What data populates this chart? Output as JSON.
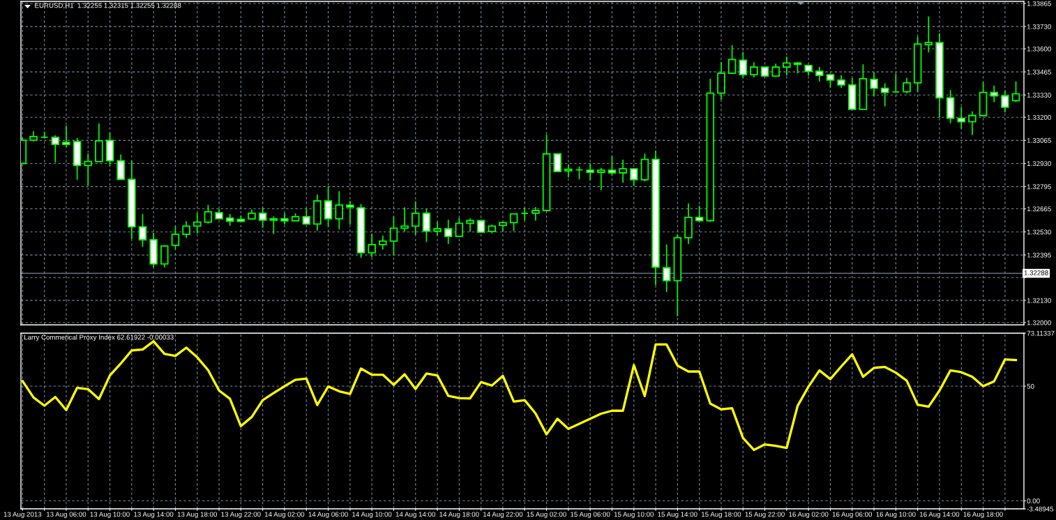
{
  "chart_data": [
    {
      "type": "candlestick",
      "title": "EURUSD,H1  1.32255 1.32315 1.32255 1.32288",
      "x": [
        "2013-08-13T02:00",
        "2013-08-13T03:00",
        "2013-08-13T04:00",
        "2013-08-13T05:00",
        "2013-08-13T06:00",
        "2013-08-13T07:00",
        "2013-08-13T08:00",
        "2013-08-13T09:00",
        "2013-08-13T10:00",
        "2013-08-13T11:00",
        "2013-08-13T12:00",
        "2013-08-13T13:00",
        "2013-08-13T14:00",
        "2013-08-13T15:00",
        "2013-08-13T16:00",
        "2013-08-13T17:00",
        "2013-08-13T18:00",
        "2013-08-13T19:00",
        "2013-08-13T20:00",
        "2013-08-13T21:00",
        "2013-08-13T22:00",
        "2013-08-13T23:00",
        "2013-08-14T00:00",
        "2013-08-14T01:00",
        "2013-08-14T02:00",
        "2013-08-14T03:00",
        "2013-08-14T04:00",
        "2013-08-14T05:00",
        "2013-08-14T06:00",
        "2013-08-14T07:00",
        "2013-08-14T08:00",
        "2013-08-14T09:00",
        "2013-08-14T10:00",
        "2013-08-14T11:00",
        "2013-08-14T12:00",
        "2013-08-14T13:00",
        "2013-08-14T14:00",
        "2013-08-14T15:00",
        "2013-08-14T16:00",
        "2013-08-14T17:00",
        "2013-08-14T18:00",
        "2013-08-14T19:00",
        "2013-08-14T20:00",
        "2013-08-14T21:00",
        "2013-08-14T22:00",
        "2013-08-14T23:00",
        "2013-08-15T00:00",
        "2013-08-15T01:00",
        "2013-08-15T02:00",
        "2013-08-15T03:00",
        "2013-08-15T04:00",
        "2013-08-15T05:00",
        "2013-08-15T06:00",
        "2013-08-15T07:00",
        "2013-08-15T08:00",
        "2013-08-15T09:00",
        "2013-08-15T10:00",
        "2013-08-15T11:00",
        "2013-08-15T12:00",
        "2013-08-15T13:00",
        "2013-08-15T14:00",
        "2013-08-15T15:00",
        "2013-08-15T16:00",
        "2013-08-15T17:00",
        "2013-08-15T18:00",
        "2013-08-15T19:00",
        "2013-08-15T20:00",
        "2013-08-15T21:00",
        "2013-08-15T22:00",
        "2013-08-15T23:00",
        "2013-08-16T00:00",
        "2013-08-16T01:00",
        "2013-08-16T02:00",
        "2013-08-16T03:00",
        "2013-08-16T04:00",
        "2013-08-16T05:00",
        "2013-08-16T06:00",
        "2013-08-16T07:00",
        "2013-08-16T08:00",
        "2013-08-16T09:00",
        "2013-08-16T10:00",
        "2013-08-16T11:00",
        "2013-08-16T12:00",
        "2013-08-16T13:00",
        "2013-08-16T14:00",
        "2013-08-16T15:00",
        "2013-08-16T16:00",
        "2013-08-16T17:00",
        "2013-08-16T18:00",
        "2013-08-16T19:00",
        "2013-08-16T20:00",
        "2013-08-16T21:00"
      ],
      "ohlc": [
        [
          1.3293,
          1.33081,
          1.3293,
          1.33066
        ],
        [
          1.33066,
          1.33118,
          1.33058,
          1.33087
        ],
        [
          1.33083,
          1.33116,
          1.3308,
          1.33083
        ],
        [
          1.33082,
          1.33094,
          1.32936,
          1.33042
        ],
        [
          1.33054,
          1.33151,
          1.33027,
          1.33042
        ],
        [
          1.33058,
          1.33079,
          1.32835,
          1.32918
        ],
        [
          1.32918,
          1.32987,
          1.32799,
          1.32942
        ],
        [
          1.32941,
          1.33163,
          1.32938,
          1.33062
        ],
        [
          1.33065,
          1.3311,
          1.32914,
          1.32946
        ],
        [
          1.32946,
          1.32982,
          1.32833,
          1.32837
        ],
        [
          1.32837,
          1.32944,
          1.32489,
          1.3256
        ],
        [
          1.3256,
          1.32635,
          1.32443,
          1.32484
        ],
        [
          1.32484,
          1.32525,
          1.32323,
          1.32343
        ],
        [
          1.32343,
          1.32453,
          1.32323,
          1.32448
        ],
        [
          1.32452,
          1.32565,
          1.32429,
          1.32516
        ],
        [
          1.32516,
          1.32593,
          1.32494,
          1.32564
        ],
        [
          1.32564,
          1.32641,
          1.32521,
          1.32587
        ],
        [
          1.32587,
          1.32688,
          1.32579,
          1.32647
        ],
        [
          1.32642,
          1.32665,
          1.32607,
          1.32607
        ],
        [
          1.32611,
          1.32635,
          1.32566,
          1.32593
        ],
        [
          1.32603,
          1.32625,
          1.32589,
          1.32591
        ],
        [
          1.32606,
          1.32661,
          1.32602,
          1.32639
        ],
        [
          1.32639,
          1.32673,
          1.32554,
          1.32599
        ],
        [
          1.32607,
          1.32621,
          1.32518,
          1.32599
        ],
        [
          1.32607,
          1.32641,
          1.32574,
          1.32595
        ],
        [
          1.32595,
          1.32638,
          1.32595,
          1.32619
        ],
        [
          1.32619,
          1.32669,
          1.32576,
          1.32576
        ],
        [
          1.32576,
          1.32748,
          1.32538,
          1.32711
        ],
        [
          1.32711,
          1.32795,
          1.3256,
          1.32607
        ],
        [
          1.32607,
          1.32768,
          1.32546,
          1.32687
        ],
        [
          1.32686,
          1.32711,
          1.32573,
          1.32675
        ],
        [
          1.32671,
          1.32693,
          1.32379,
          1.32408
        ],
        [
          1.32408,
          1.3252,
          1.32383,
          1.32456
        ],
        [
          1.32456,
          1.32509,
          1.32427,
          1.32476
        ],
        [
          1.32476,
          1.32621,
          1.32393,
          1.32552
        ],
        [
          1.32552,
          1.32673,
          1.32533,
          1.32564
        ],
        [
          1.32564,
          1.32709,
          1.32513,
          1.32639
        ],
        [
          1.32639,
          1.32665,
          1.32471,
          1.32534
        ],
        [
          1.32534,
          1.32589,
          1.3251,
          1.32548
        ],
        [
          1.32548,
          1.32601,
          1.32459,
          1.32504
        ],
        [
          1.32504,
          1.32613,
          1.32504,
          1.3258
        ],
        [
          1.3258,
          1.32609,
          1.32532,
          1.32596
        ],
        [
          1.32596,
          1.32602,
          1.32528,
          1.32528
        ],
        [
          1.32532,
          1.32572,
          1.32522,
          1.32564
        ],
        [
          1.32568,
          1.3259,
          1.32532,
          1.32584
        ],
        [
          1.32584,
          1.32635,
          1.32534,
          1.32635
        ],
        [
          1.32638,
          1.32671,
          1.32598,
          1.32638
        ],
        [
          1.32639,
          1.32675,
          1.32596,
          1.32655
        ],
        [
          1.32655,
          1.33098,
          1.32655,
          1.32986
        ],
        [
          1.32986,
          1.32986,
          1.32883,
          1.32883
        ],
        [
          1.32887,
          1.32925,
          1.32848,
          1.32896
        ],
        [
          1.32893,
          1.32912,
          1.32837,
          1.32893
        ],
        [
          1.32891,
          1.3293,
          1.32831,
          1.32879
        ],
        [
          1.32879,
          1.32904,
          1.32774,
          1.32891
        ],
        [
          1.32891,
          1.32974,
          1.32861,
          1.32875
        ],
        [
          1.32875,
          1.32952,
          1.32818,
          1.32899
        ],
        [
          1.32899,
          1.32899,
          1.32798,
          1.32835
        ],
        [
          1.32835,
          1.32988,
          1.32825,
          1.32954
        ],
        [
          1.32954,
          1.33004,
          1.32219,
          1.32324
        ],
        [
          1.3232,
          1.32457,
          1.32179,
          1.32245
        ],
        [
          1.32245,
          1.32516,
          1.32037,
          1.32496
        ],
        [
          1.32496,
          1.32697,
          1.32459,
          1.32615
        ],
        [
          1.32615,
          1.32682,
          1.32589,
          1.32596
        ],
        [
          1.32596,
          1.33425,
          1.32589,
          1.33341
        ],
        [
          1.33341,
          1.33523,
          1.33303,
          1.33457
        ],
        [
          1.33457,
          1.33622,
          1.33452,
          1.33537
        ],
        [
          1.33533,
          1.33582,
          1.3343,
          1.33449
        ],
        [
          1.33449,
          1.33522,
          1.33433,
          1.33493
        ],
        [
          1.33493,
          1.33493,
          1.33441,
          1.33441
        ],
        [
          1.33441,
          1.33513,
          1.33436,
          1.33493
        ],
        [
          1.33493,
          1.33554,
          1.33444,
          1.33517
        ],
        [
          1.33517,
          1.33523,
          1.33457,
          1.33509
        ],
        [
          1.33503,
          1.33503,
          1.33444,
          1.33468
        ],
        [
          1.33469,
          1.33494,
          1.33408,
          1.33445
        ],
        [
          1.33449,
          1.33449,
          1.33373,
          1.33417
        ],
        [
          1.33417,
          1.33446,
          1.33371,
          1.33389
        ],
        [
          1.33389,
          1.33429,
          1.33246,
          1.33246
        ],
        [
          1.33246,
          1.33509,
          1.33246,
          1.33425
        ],
        [
          1.33421,
          1.3346,
          1.33324,
          1.33369
        ],
        [
          1.33369,
          1.33398,
          1.33264,
          1.33345
        ],
        [
          1.33348,
          1.33453,
          1.33345,
          1.33348
        ],
        [
          1.33349,
          1.3343,
          1.3334,
          1.33401
        ],
        [
          1.33401,
          1.3367,
          1.33348,
          1.33628
        ],
        [
          1.33624,
          1.33789,
          1.33579,
          1.33636
        ],
        [
          1.33636,
          1.33691,
          1.33199,
          1.33313
        ],
        [
          1.33313,
          1.33359,
          1.33164,
          1.33194
        ],
        [
          1.33194,
          1.3326,
          1.33133,
          1.33174
        ],
        [
          1.33174,
          1.33234,
          1.33097,
          1.3321
        ],
        [
          1.3321,
          1.33406,
          1.33204,
          1.33345
        ],
        [
          1.33345,
          1.33385,
          1.33288,
          1.33325
        ],
        [
          1.33325,
          1.33356,
          1.33228,
          1.33258
        ],
        [
          1.33297,
          1.3341,
          1.33288,
          1.33337
        ]
      ],
      "color": "#00ff00",
      "colors": [
        "#000000",
        "#000000",
        "#00ff00",
        "#ffffff",
        "#ffffff",
        "#ffffff",
        "#000000",
        "#000000",
        "#ffffff",
        "#ffffff",
        "#ffffff",
        "#ffffff",
        "#ffffff",
        "#000000",
        "#000000",
        "#000000",
        "#000000",
        "#000000",
        "#ffffff",
        "#ffffff",
        "#ffffff",
        "#000000",
        "#ffffff",
        "#ffffff",
        "#ffffff",
        "#000000",
        "#ffffff",
        "#000000",
        "#ffffff",
        "#000000",
        "#ffffff",
        "#ffffff",
        "#000000",
        "#000000",
        "#000000",
        "#000000",
        "#000000",
        "#ffffff",
        "#000000",
        "#ffffff",
        "#000000",
        "#000000",
        "#ffffff",
        "#000000",
        "#000000",
        "#000000",
        "#00ff00",
        "#000000",
        "#000000",
        "#ffffff",
        "#000000",
        "#00ff00",
        "#ffffff",
        "#000000",
        "#ffffff",
        "#000000",
        "#ffffff",
        "#000000",
        "#ffffff",
        "#ffffff",
        "#000000",
        "#000000",
        "#ffffff",
        "#000000",
        "#000000",
        "#000000",
        "#ffffff",
        "#000000",
        "#ffffff",
        "#000000",
        "#000000",
        "#ffffff",
        "#ffffff",
        "#ffffff",
        "#ffffff",
        "#ffffff",
        "#ffffff",
        "#000000",
        "#ffffff",
        "#ffffff",
        "#00ff00",
        "#000000",
        "#000000",
        "#000000",
        "#ffffff",
        "#ffffff",
        "#ffffff",
        "#000000",
        "#000000",
        "#ffffff",
        "#ffffff",
        "#000000"
      ],
      "xlim": [
        "2013-08-13T01:51",
        "2013-08-16T21:44"
      ],
      "ylim": [
        1.31987,
        1.33877
      ],
      "xticks": [
        {
          "value": "2013-08-13T02:00",
          "label": null
        },
        {
          "value": "2013-08-13T04:00",
          "label": null
        },
        {
          "value": "2013-08-13T06:00",
          "label": null
        },
        {
          "value": "2013-08-13T08:00",
          "label": null
        },
        {
          "value": "2013-08-13T10:00",
          "label": null
        },
        {
          "value": "2013-08-13T12:00",
          "label": null
        },
        {
          "value": "2013-08-13T14:00",
          "label": null
        },
        {
          "value": "2013-08-13T16:00",
          "label": null
        },
        {
          "value": "2013-08-13T18:00",
          "label": null
        },
        {
          "value": "2013-08-13T20:00",
          "label": null
        },
        {
          "value": "2013-08-13T22:00",
          "label": null
        },
        {
          "value": "2013-08-14T00:00",
          "label": null
        },
        {
          "value": "2013-08-14T02:00",
          "label": null
        },
        {
          "value": "2013-08-14T04:00",
          "label": null
        },
        {
          "value": "2013-08-14T06:00",
          "label": null
        },
        {
          "value": "2013-08-14T08:00",
          "label": null
        },
        {
          "value": "2013-08-14T10:00",
          "label": null
        },
        {
          "value": "2013-08-14T12:00",
          "label": null
        },
        {
          "value": "2013-08-14T14:00",
          "label": null
        },
        {
          "value": "2013-08-14T16:00",
          "label": null
        },
        {
          "value": "2013-08-14T18:00",
          "label": null
        },
        {
          "value": "2013-08-14T20:00",
          "label": null
        },
        {
          "value": "2013-08-14T22:00",
          "label": null
        },
        {
          "value": "2013-08-15T00:00",
          "label": null
        },
        {
          "value": "2013-08-15T02:00",
          "label": null
        },
        {
          "value": "2013-08-15T04:00",
          "label": null
        },
        {
          "value": "2013-08-15T06:00",
          "label": null
        },
        {
          "value": "2013-08-15T08:00",
          "label": null
        },
        {
          "value": "2013-08-15T10:00",
          "label": null
        },
        {
          "value": "2013-08-15T12:00",
          "label": null
        },
        {
          "value": "2013-08-15T14:00",
          "label": null
        },
        {
          "value": "2013-08-15T16:00",
          "label": null
        },
        {
          "value": "2013-08-15T18:00",
          "label": null
        },
        {
          "value": "2013-08-15T20:00",
          "label": null
        },
        {
          "value": "2013-08-15T22:00",
          "label": null
        },
        {
          "value": "2013-08-16T00:00",
          "label": null
        },
        {
          "value": "2013-08-16T02:00",
          "label": null
        },
        {
          "value": "2013-08-16T04:00",
          "label": null
        },
        {
          "value": "2013-08-16T06:00",
          "label": null
        },
        {
          "value": "2013-08-16T08:00",
          "label": null
        },
        {
          "value": "2013-08-16T10:00",
          "label": null
        },
        {
          "value": "2013-08-16T12:00",
          "label": null
        },
        {
          "value": "2013-08-16T14:00",
          "label": null
        },
        {
          "value": "2013-08-16T16:00",
          "label": null
        },
        {
          "value": "2013-08-16T18:00",
          "label": null
        },
        {
          "value": "2013-08-16T20:00",
          "label": null
        }
      ],
      "yticks": [
        1.33865,
        {
          "value": 1.3373,
          "label": "1.33730"
        },
        {
          "value": 1.336,
          "label": "1.33600"
        },
        1.33465,
        {
          "value": 1.3333,
          "label": "1.33330"
        },
        {
          "value": 1.332,
          "label": "1.33200"
        },
        1.33065,
        {
          "value": 1.3293,
          "label": "1.32930"
        },
        1.32795,
        1.32665,
        {
          "value": 1.3253,
          "label": "1.32530"
        },
        1.32395,
        {
          "value": 1.32263,
          "label": null
        },
        {
          "value": 1.3213,
          "label": "1.32130"
        },
        {
          "value": 1.32,
          "label": "1.32000"
        }
      ],
      "grid": true,
      "tick_labels": "y",
      "ref_lines": [
        {
          "axis": "y",
          "value": 1.32288,
          "label": "1.32288",
          "color": "#778899"
        }
      ]
    },
    {
      "type": "line",
      "title": "Larry Commerical Proxy Index 62.61922 -0.00033",
      "x": [
        "2013-08-13T02:00",
        "2013-08-13T03:00",
        "2013-08-13T04:00",
        "2013-08-13T05:00",
        "2013-08-13T06:00",
        "2013-08-13T07:00",
        "2013-08-13T08:00",
        "2013-08-13T09:00",
        "2013-08-13T10:00",
        "2013-08-13T11:00",
        "2013-08-13T12:00",
        "2013-08-13T13:00",
        "2013-08-13T14:00",
        "2013-08-13T15:00",
        "2013-08-13T16:00",
        "2013-08-13T17:00",
        "2013-08-13T18:00",
        "2013-08-13T19:00",
        "2013-08-13T20:00",
        "2013-08-13T21:00",
        "2013-08-13T22:00",
        "2013-08-13T23:00",
        "2013-08-14T00:00",
        "2013-08-14T01:00",
        "2013-08-14T02:00",
        "2013-08-14T03:00",
        "2013-08-14T04:00",
        "2013-08-14T05:00",
        "2013-08-14T06:00",
        "2013-08-14T07:00",
        "2013-08-14T08:00",
        "2013-08-14T09:00",
        "2013-08-14T10:00",
        "2013-08-14T11:00",
        "2013-08-14T12:00",
        "2013-08-14T13:00",
        "2013-08-14T14:00",
        "2013-08-14T15:00",
        "2013-08-14T16:00",
        "2013-08-14T17:00",
        "2013-08-14T18:00",
        "2013-08-14T19:00",
        "2013-08-14T20:00",
        "2013-08-14T21:00",
        "2013-08-14T22:00",
        "2013-08-14T23:00",
        "2013-08-15T00:00",
        "2013-08-15T01:00",
        "2013-08-15T02:00",
        "2013-08-15T03:00",
        "2013-08-15T04:00",
        "2013-08-15T05:00",
        "2013-08-15T06:00",
        "2013-08-15T07:00",
        "2013-08-15T08:00",
        "2013-08-15T09:00",
        "2013-08-15T10:00",
        "2013-08-15T11:00",
        "2013-08-15T12:00",
        "2013-08-15T13:00",
        "2013-08-15T14:00",
        "2013-08-15T15:00",
        "2013-08-15T16:00",
        "2013-08-15T17:00",
        "2013-08-15T18:00",
        "2013-08-15T19:00",
        "2013-08-15T20:00",
        "2013-08-15T21:00",
        "2013-08-15T22:00",
        "2013-08-15T23:00",
        "2013-08-16T00:00",
        "2013-08-16T01:00",
        "2013-08-16T02:00",
        "2013-08-16T03:00",
        "2013-08-16T04:00",
        "2013-08-16T05:00",
        "2013-08-16T06:00",
        "2013-08-16T07:00",
        "2013-08-16T08:00",
        "2013-08-16T09:00",
        "2013-08-16T10:00",
        "2013-08-16T11:00",
        "2013-08-16T12:00",
        "2013-08-16T13:00",
        "2013-08-16T14:00",
        "2013-08-16T15:00",
        "2013-08-16T16:00",
        "2013-08-16T17:00",
        "2013-08-16T18:00",
        "2013-08-16T19:00",
        "2013-08-16T20:00",
        "2013-08-16T21:00"
      ],
      "series": [
        {
          "color": "#ffff00",
          "values": [
            52.2,
            45.1,
            41.5,
            45.3,
            39.6,
            49.3,
            48.7,
            44.4,
            54.7,
            59.9,
            65.6,
            66.0,
            69.6,
            64.1,
            63.2,
            66.8,
            62.6,
            57.0,
            48.1,
            44.5,
            32.6,
            36.6,
            43.9,
            47.0,
            50.0,
            52.8,
            53.3,
            41.8,
            49.9,
            47.8,
            46.6,
            57.7,
            55.0,
            55.0,
            50.6,
            55.2,
            48.8,
            55.5,
            54.7,
            45.8,
            44.8,
            44.7,
            51.8,
            50.3,
            54.5,
            43.3,
            43.9,
            38.1,
            29.0,
            35.8,
            31.4,
            33.6,
            35.8,
            38.0,
            39.3,
            39.3,
            59.2,
            45.7,
            68.2,
            68.2,
            59.0,
            56.4,
            56.4,
            42.4,
            39.9,
            40.4,
            27.4,
            22.2,
            24.6,
            24.0,
            23.1,
            41.4,
            49.8,
            56.9,
            53.1,
            58.6,
            63.9,
            54.1,
            58.0,
            58.4,
            55.9,
            52.4,
            41.9,
            41.1,
            48.1,
            56.9,
            56.1,
            54.1,
            50.0,
            52.1,
            61.7,
            61.4
          ]
        }
      ],
      "xlim": [
        "2013-08-13T01:51",
        "2013-08-16T21:44"
      ],
      "ylim": [
        -3.48945,
        73.11337
      ],
      "xticks": [
        {
          "value": "2013-08-13T02:00",
          "label": "13 Aug 2013"
        },
        {
          "value": "2013-08-13T04:00",
          "label": null
        },
        {
          "value": "2013-08-13T06:00",
          "label": "13 Aug 06:00"
        },
        {
          "value": "2013-08-13T08:00",
          "label": null
        },
        {
          "value": "2013-08-13T10:00",
          "label": "13 Aug 10:00"
        },
        {
          "value": "2013-08-13T12:00",
          "label": null
        },
        {
          "value": "2013-08-13T14:00",
          "label": "13 Aug 14:00"
        },
        {
          "value": "2013-08-13T16:00",
          "label": null
        },
        {
          "value": "2013-08-13T18:00",
          "label": "13 Aug 18:00"
        },
        {
          "value": "2013-08-13T20:00",
          "label": null
        },
        {
          "value": "2013-08-13T22:00",
          "label": "13 Aug 22:00"
        },
        {
          "value": "2013-08-14T00:00",
          "label": null
        },
        {
          "value": "2013-08-14T02:00",
          "label": "14 Aug 02:00"
        },
        {
          "value": "2013-08-14T04:00",
          "label": null
        },
        {
          "value": "2013-08-14T06:00",
          "label": "14 Aug 06:00"
        },
        {
          "value": "2013-08-14T08:00",
          "label": null
        },
        {
          "value": "2013-08-14T10:00",
          "label": "14 Aug 10:00"
        },
        {
          "value": "2013-08-14T12:00",
          "label": null
        },
        {
          "value": "2013-08-14T14:00",
          "label": "14 Aug 14:00"
        },
        {
          "value": "2013-08-14T16:00",
          "label": null
        },
        {
          "value": "2013-08-14T18:00",
          "label": "14 Aug 18:00"
        },
        {
          "value": "2013-08-14T20:00",
          "label": null
        },
        {
          "value": "2013-08-14T22:00",
          "label": "14 Aug 22:00"
        },
        {
          "value": "2013-08-15T00:00",
          "label": null
        },
        {
          "value": "2013-08-15T02:00",
          "label": "15 Aug 02:00"
        },
        {
          "value": "2013-08-15T04:00",
          "label": null
        },
        {
          "value": "2013-08-15T06:00",
          "label": "15 Aug 06:00"
        },
        {
          "value": "2013-08-15T08:00",
          "label": null
        },
        {
          "value": "2013-08-15T10:00",
          "label": "15 Aug 10:00"
        },
        {
          "value": "2013-08-15T12:00",
          "label": null
        },
        {
          "value": "2013-08-15T14:00",
          "label": "15 Aug 14:00"
        },
        {
          "value": "2013-08-15T16:00",
          "label": null
        },
        {
          "value": "2013-08-15T18:00",
          "label": "15 Aug 18:00"
        },
        {
          "value": "2013-08-15T20:00",
          "label": null
        },
        {
          "value": "2013-08-15T22:00",
          "label": "15 Aug 22:00"
        },
        {
          "value": "2013-08-16T00:00",
          "label": null
        },
        {
          "value": "2013-08-16T02:00",
          "label": "16 Aug 02:00"
        },
        {
          "value": "2013-08-16T04:00",
          "label": null
        },
        {
          "value": "2013-08-16T06:00",
          "label": "16 Aug 06:00"
        },
        {
          "value": "2013-08-16T08:00",
          "label": null
        },
        {
          "value": "2013-08-16T10:00",
          "label": "16 Aug 10:00"
        },
        {
          "value": "2013-08-16T12:00",
          "label": null
        },
        {
          "value": "2013-08-16T14:00",
          "label": "16 Aug 14:00"
        },
        {
          "value": "2013-08-16T16:00",
          "label": null
        },
        {
          "value": "2013-08-16T18:00",
          "label": "16 Aug 18:00"
        },
        {
          "value": "2013-08-16T20:00",
          "label": null
        }
      ],
      "yticks": [
        73.11337,
        50,
        {
          "value": 0,
          "label": "0.00"
        },
        -3.48945
      ],
      "grid": true
    }
  ]
}
